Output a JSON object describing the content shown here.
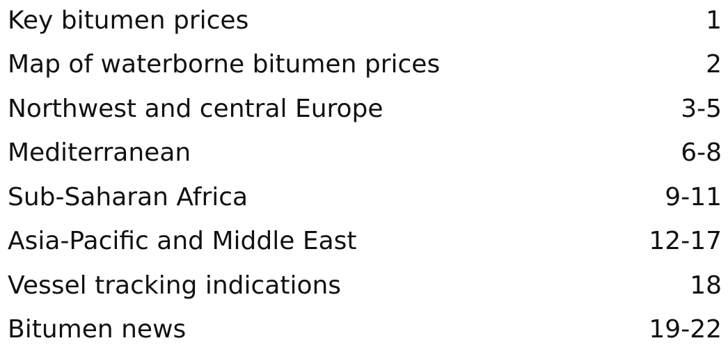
{
  "toc": {
    "items": [
      {
        "title": "Key bitumen prices",
        "page": "1"
      },
      {
        "title": "Map of waterborne bitumen prices",
        "page": "2"
      },
      {
        "title": "Northwest and central Europe",
        "page": "3-5"
      },
      {
        "title": "Mediterranean",
        "page": "6-8"
      },
      {
        "title": "Sub-Saharan Africa",
        "page": "9-11"
      },
      {
        "title": "Asia-Pacific and Middle East",
        "page": "12-17"
      },
      {
        "title": "Vessel tracking indications",
        "page": "18"
      },
      {
        "title": "Bitumen news",
        "page": "19-22"
      }
    ]
  }
}
